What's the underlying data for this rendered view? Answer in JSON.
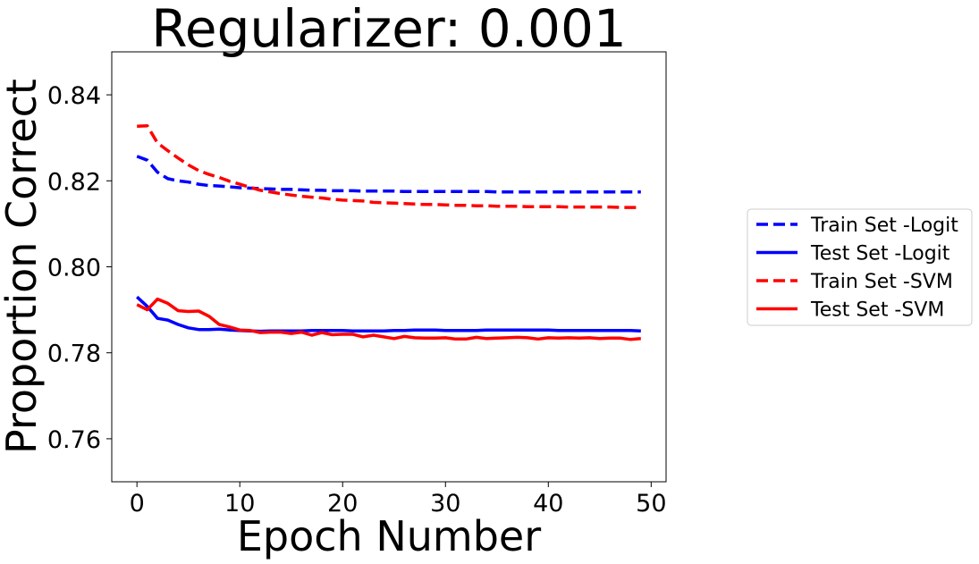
{
  "chart_data": {
    "type": "line",
    "title": "Regularizer: 0.001",
    "xlabel": "Epoch Number",
    "ylabel": "Proportion Correct",
    "xlim": [
      -2.45,
      51.45
    ],
    "ylim": [
      0.75,
      0.85
    ],
    "xticks": [
      0,
      10,
      20,
      30,
      40,
      50
    ],
    "xtick_labels": [
      "0",
      "10",
      "20",
      "30",
      "40",
      "50"
    ],
    "yticks": [
      0.76,
      0.78,
      0.8,
      0.82,
      0.84
    ],
    "ytick_labels": [
      "0.76",
      "0.78",
      "0.80",
      "0.82",
      "0.84"
    ],
    "grid": false,
    "legend_position": "right",
    "series": [
      {
        "name": "Train Set -Logit",
        "color": "#0000ff",
        "style": "dashed",
        "x": [
          0,
          1,
          2,
          3,
          4,
          5,
          6,
          7,
          8,
          9,
          10,
          11,
          12,
          13,
          14,
          15,
          16,
          17,
          18,
          19,
          20,
          21,
          22,
          23,
          24,
          25,
          26,
          27,
          28,
          29,
          30,
          31,
          32,
          33,
          34,
          35,
          36,
          37,
          38,
          39,
          40,
          41,
          42,
          43,
          44,
          45,
          46,
          47,
          48,
          49
        ],
        "y": [
          0.8257,
          0.8248,
          0.822,
          0.8205,
          0.82,
          0.8197,
          0.8192,
          0.8189,
          0.8188,
          0.8186,
          0.8184,
          0.8183,
          0.8182,
          0.8181,
          0.818,
          0.818,
          0.8179,
          0.8178,
          0.8178,
          0.8177,
          0.8177,
          0.8177,
          0.8176,
          0.8176,
          0.8176,
          0.8176,
          0.8175,
          0.8175,
          0.8175,
          0.8175,
          0.8175,
          0.8175,
          0.8175,
          0.8175,
          0.8175,
          0.8174,
          0.8174,
          0.8174,
          0.8174,
          0.8174,
          0.8174,
          0.8174,
          0.8174,
          0.8174,
          0.8174,
          0.8174,
          0.8174,
          0.8174,
          0.8174,
          0.8174
        ]
      },
      {
        "name": "Test Set -Logit",
        "color": "#0000ff",
        "style": "solid",
        "x": [
          0,
          1,
          2,
          3,
          4,
          5,
          6,
          7,
          8,
          9,
          10,
          11,
          12,
          13,
          14,
          15,
          16,
          17,
          18,
          19,
          20,
          21,
          22,
          23,
          24,
          25,
          26,
          27,
          28,
          29,
          30,
          31,
          32,
          33,
          34,
          35,
          36,
          37,
          38,
          39,
          40,
          41,
          42,
          43,
          44,
          45,
          46,
          47,
          48,
          49
        ],
        "y": [
          0.793,
          0.7908,
          0.788,
          0.7876,
          0.7866,
          0.7858,
          0.7854,
          0.7854,
          0.7855,
          0.7853,
          0.7852,
          0.7851,
          0.785,
          0.7851,
          0.7851,
          0.7851,
          0.7851,
          0.7852,
          0.7852,
          0.7852,
          0.7852,
          0.7851,
          0.7851,
          0.7851,
          0.7851,
          0.7852,
          0.7852,
          0.7853,
          0.7853,
          0.7853,
          0.7852,
          0.7852,
          0.7852,
          0.7852,
          0.7853,
          0.7853,
          0.7853,
          0.7853,
          0.7853,
          0.7853,
          0.7853,
          0.7852,
          0.7852,
          0.7852,
          0.7852,
          0.7852,
          0.7852,
          0.7852,
          0.7852,
          0.7851
        ]
      },
      {
        "name": "Train Set -SVM",
        "color": "#ff0000",
        "style": "dashed",
        "x": [
          0,
          1,
          2,
          3,
          4,
          5,
          6,
          7,
          8,
          9,
          10,
          11,
          12,
          13,
          14,
          15,
          16,
          17,
          18,
          19,
          20,
          21,
          22,
          23,
          24,
          25,
          26,
          27,
          28,
          29,
          30,
          31,
          32,
          33,
          34,
          35,
          36,
          37,
          38,
          39,
          40,
          41,
          42,
          43,
          44,
          45,
          46,
          47,
          48,
          49
        ],
        "y": [
          0.8327,
          0.8328,
          0.8288,
          0.827,
          0.8253,
          0.8237,
          0.8224,
          0.8215,
          0.8208,
          0.8199,
          0.8192,
          0.8185,
          0.8178,
          0.8174,
          0.817,
          0.8167,
          0.8164,
          0.8162,
          0.816,
          0.8157,
          0.8155,
          0.8154,
          0.8153,
          0.815,
          0.8149,
          0.8148,
          0.8147,
          0.8146,
          0.8145,
          0.8145,
          0.8144,
          0.8143,
          0.8143,
          0.8142,
          0.8142,
          0.8141,
          0.8141,
          0.8141,
          0.814,
          0.814,
          0.814,
          0.814,
          0.8139,
          0.8139,
          0.8139,
          0.8139,
          0.8139,
          0.8138,
          0.8138,
          0.8138
        ]
      },
      {
        "name": "Test Set -SVM",
        "color": "#ff0000",
        "style": "solid",
        "x": [
          0,
          1,
          2,
          3,
          4,
          5,
          6,
          7,
          8,
          9,
          10,
          11,
          12,
          13,
          14,
          15,
          16,
          17,
          18,
          19,
          20,
          21,
          22,
          23,
          24,
          25,
          26,
          27,
          28,
          29,
          30,
          31,
          32,
          33,
          34,
          35,
          36,
          37,
          38,
          39,
          40,
          41,
          42,
          43,
          44,
          45,
          46,
          47,
          48,
          49
        ],
        "y": [
          0.7912,
          0.79,
          0.7925,
          0.7915,
          0.7898,
          0.7896,
          0.7897,
          0.7885,
          0.7866,
          0.786,
          0.7853,
          0.7852,
          0.7847,
          0.7848,
          0.7848,
          0.7845,
          0.7848,
          0.7841,
          0.7847,
          0.7842,
          0.7843,
          0.7843,
          0.7837,
          0.7841,
          0.7837,
          0.7833,
          0.7838,
          0.7835,
          0.7834,
          0.7834,
          0.7835,
          0.7832,
          0.7832,
          0.7836,
          0.7833,
          0.7834,
          0.7835,
          0.7836,
          0.7835,
          0.7832,
          0.7835,
          0.7834,
          0.7835,
          0.7834,
          0.7835,
          0.7833,
          0.7834,
          0.7834,
          0.7831,
          0.7833
        ]
      }
    ]
  }
}
